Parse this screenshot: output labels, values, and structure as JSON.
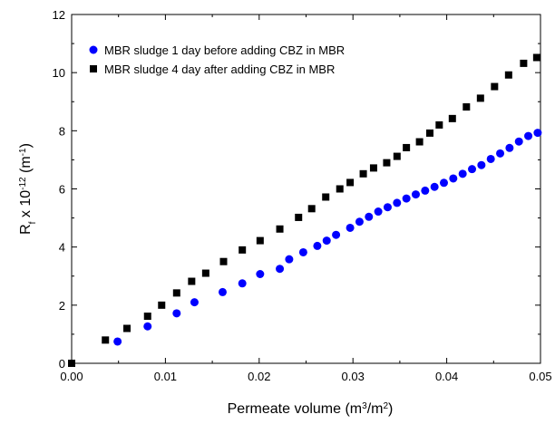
{
  "chart_data": {
    "type": "scatter",
    "xlabel": {
      "base": "Permeate volume (m",
      "sup1": "3",
      "mid": "/m",
      "sup2": "2",
      "end": ")"
    },
    "ylabel": {
      "base": "R",
      "sub": "f",
      "mid": " x 10",
      "sup1": "-12",
      "mid2": " (m",
      "sup2": "-1",
      "end": ")"
    },
    "xlim": [
      0,
      0.05
    ],
    "ylim": [
      0,
      12
    ],
    "xticks": [
      0.0,
      0.01,
      0.02,
      0.03,
      0.04,
      0.05
    ],
    "xtick_labels": [
      "0.00",
      "0.01",
      "0.02",
      "0.03",
      "0.04",
      "0.05"
    ],
    "yticks": [
      0,
      2,
      4,
      6,
      8,
      10,
      12
    ],
    "ytick_labels": [
      "0",
      "2",
      "4",
      "6",
      "8",
      "10",
      "12"
    ],
    "grid": false,
    "legend_position": "top-left",
    "series": [
      {
        "name": "MBR sludge 1 day before adding CBZ in MBR",
        "marker": "circle",
        "color": "#0000ff",
        "x": [
          0.0049,
          0.0081,
          0.0112,
          0.0131,
          0.0161,
          0.0182,
          0.0201,
          0.0222,
          0.0232,
          0.0247,
          0.0262,
          0.0272,
          0.0282,
          0.0297,
          0.0307,
          0.0317,
          0.0327,
          0.0337,
          0.0347,
          0.0357,
          0.0367,
          0.0377,
          0.0387,
          0.0397,
          0.0407,
          0.0417,
          0.0427,
          0.0437,
          0.0447,
          0.0457,
          0.0467,
          0.0477,
          0.0487,
          0.0497
        ],
        "y": [
          0.75,
          1.27,
          1.72,
          2.1,
          2.45,
          2.75,
          3.07,
          3.25,
          3.58,
          3.82,
          4.04,
          4.22,
          4.42,
          4.66,
          4.87,
          5.04,
          5.22,
          5.37,
          5.52,
          5.67,
          5.81,
          5.94,
          6.07,
          6.21,
          6.36,
          6.52,
          6.68,
          6.82,
          7.03,
          7.22,
          7.41,
          7.63,
          7.82,
          7.93
        ]
      },
      {
        "name": "MBR sludge 4 day after adding CBZ in MBR",
        "marker": "square",
        "color": "#000000",
        "x": [
          0.0,
          0.0036,
          0.0059,
          0.0081,
          0.0096,
          0.0112,
          0.0128,
          0.0143,
          0.0162,
          0.0182,
          0.0201,
          0.0222,
          0.0242,
          0.0256,
          0.0271,
          0.0286,
          0.0297,
          0.0311,
          0.0322,
          0.0336,
          0.0347,
          0.0357,
          0.0371,
          0.0382,
          0.0392,
          0.0406,
          0.0421,
          0.0436,
          0.0451,
          0.0466,
          0.0482,
          0.0496
        ],
        "y": [
          0.0,
          0.8,
          1.2,
          1.62,
          2.0,
          2.42,
          2.82,
          3.1,
          3.5,
          3.9,
          4.22,
          4.62,
          5.02,
          5.32,
          5.72,
          6.0,
          6.22,
          6.52,
          6.72,
          6.9,
          7.12,
          7.42,
          7.62,
          7.92,
          8.2,
          8.42,
          8.82,
          9.12,
          9.52,
          9.92,
          10.32,
          10.52
        ]
      }
    ]
  }
}
